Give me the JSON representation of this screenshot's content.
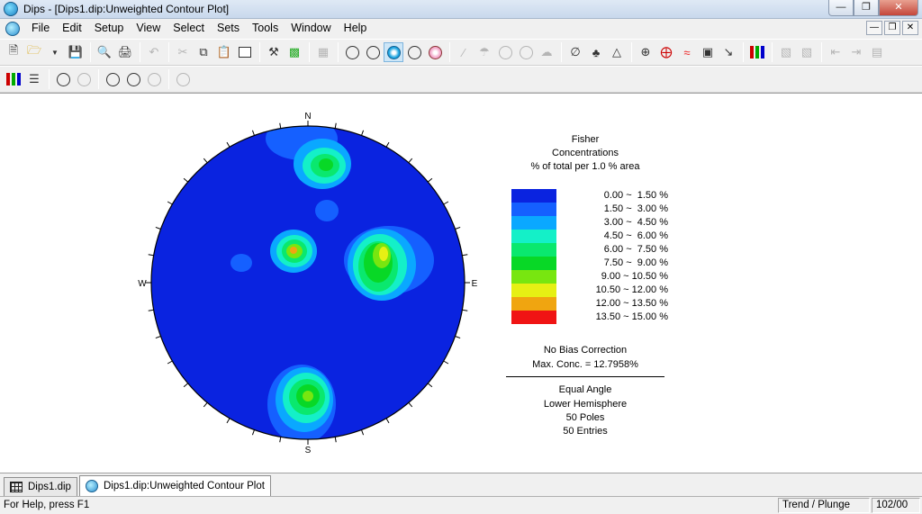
{
  "window": {
    "title": "Dips - [Dips1.dip:Unweighted Contour Plot]",
    "controls": [
      "minimize-icon",
      "maximize-icon",
      "close-icon"
    ]
  },
  "menu": {
    "items": [
      "File",
      "Edit",
      "Setup",
      "View",
      "Select",
      "Sets",
      "Tools",
      "Window",
      "Help"
    ]
  },
  "plot": {
    "compass": {
      "north": "N",
      "south": "S",
      "east": "E",
      "west": "W"
    },
    "colors": {
      "background": "#0a23e0",
      "levels": [
        "#0a23e0",
        "#1560ff",
        "#0aa8ff",
        "#14f0c8",
        "#0ae86e",
        "#08d826",
        "#78e610",
        "#e6f014",
        "#f0a510",
        "#f01414"
      ]
    }
  },
  "legend": {
    "title_lines": [
      "Fisher",
      "Concentrations",
      "% of total per 1.0 % area"
    ],
    "ranges": [
      "0.00 ~  1.50 %",
      "1.50 ~  3.00 %",
      "3.00 ~  4.50 %",
      "4.50 ~  6.00 %",
      "6.00 ~  7.50 %",
      "7.50 ~  9.00 %",
      "9.00 ~ 10.50 %",
      "10.50 ~ 12.00 %",
      "12.00 ~ 13.50 %",
      "13.50 ~ 15.00 %"
    ],
    "bias_text": "No Bias Correction",
    "max_conc": "Max. Conc. = 12.7958%",
    "projection": "Equal Angle",
    "hemisphere": "Lower Hemisphere",
    "poles": "50 Poles",
    "entries": "50 Entries"
  },
  "tabs": [
    {
      "label": "Dips1.dip",
      "icon": "grid-icon"
    },
    {
      "label": "Dips1.dip:Unweighted Contour Plot",
      "icon": "contour-plot-icon"
    }
  ],
  "status": {
    "help": "For Help, press F1",
    "mode": "Trend / Plunge",
    "value": "102/00"
  }
}
